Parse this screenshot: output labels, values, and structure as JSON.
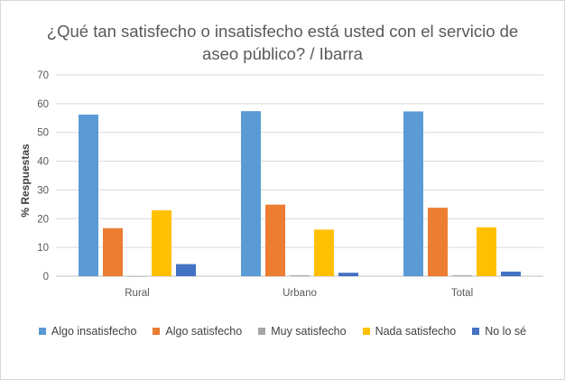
{
  "chart_data": {
    "type": "bar",
    "title": "¿Qué tan satisfecho o insatisfecho está usted con el servicio de aseo público? / Ibarra",
    "xlabel": "",
    "ylabel": "% Respuestas",
    "ylim": [
      0,
      70
    ],
    "yticks": [
      "0",
      "10",
      "20",
      "30",
      "40",
      "50",
      "60",
      "70"
    ],
    "grid": true,
    "legend_position": "bottom",
    "categories": [
      "Rural",
      "Urbano",
      "Total"
    ],
    "series": [
      {
        "name": "Algo insatisfecho",
        "color": "#5B9BD5",
        "values": [
          56.2,
          57.4,
          57.3
        ]
      },
      {
        "name": "Algo satisfecho",
        "color": "#ED7D31",
        "values": [
          16.7,
          24.9,
          23.8
        ]
      },
      {
        "name": "Muy satisfecho",
        "color": "#A5A5A5",
        "values": [
          0,
          0.3,
          0.3
        ]
      },
      {
        "name": "Nada satisfecho",
        "color": "#FFC000",
        "values": [
          22.9,
          16.2,
          17.0
        ]
      },
      {
        "name": "No lo sé",
        "color": "#4472C4",
        "values": [
          4.2,
          1.2,
          1.6
        ]
      }
    ]
  }
}
